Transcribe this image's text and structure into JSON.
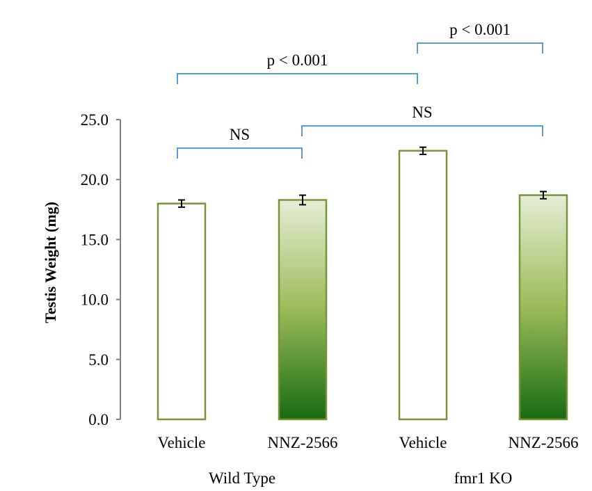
{
  "chart_data": {
    "type": "bar",
    "title": "",
    "xlabel": "",
    "ylabel": "Testis Weight (mg)",
    "ylim": [
      0,
      25
    ],
    "yticks": [
      "0.0",
      "5.0",
      "10.0",
      "15.0",
      "20.0",
      "25.0"
    ],
    "grid": false,
    "legend": "none",
    "categories": [
      "Vehicle",
      "NNZ-2566",
      "Vehicle",
      "NNZ-2566"
    ],
    "groups": [
      {
        "label": "Wild Type",
        "members": [
          0,
          1
        ]
      },
      {
        "label": "fmr1 KO",
        "members": [
          2,
          3
        ]
      }
    ],
    "values": [
      18.0,
      18.3,
      22.4,
      18.7
    ],
    "errors": [
      0.3,
      0.4,
      0.3,
      0.3
    ],
    "fills": [
      "white",
      "green-gradient",
      "white",
      "green-gradient"
    ],
    "comparisons": [
      {
        "from": 0,
        "to": 1,
        "label": "NS"
      },
      {
        "from": 1,
        "to": 3,
        "label": "NS"
      },
      {
        "from": 0,
        "to": 2,
        "label": "p < 0.001"
      },
      {
        "from": 2,
        "to": 3,
        "label": "p < 0.001"
      }
    ],
    "colors": {
      "bar_border": "#77933C",
      "gradient_top": "#E6EDD5",
      "gradient_mid": "#9BBB59",
      "gradient_bottom": "#196B12",
      "bracket": "#5B9BD5",
      "axis": "#808080",
      "error_bar": "#000000"
    }
  }
}
